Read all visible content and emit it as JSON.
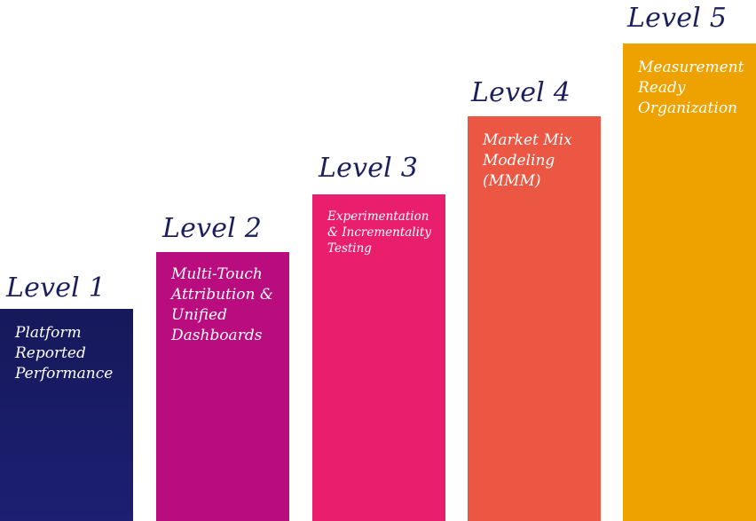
{
  "levels": [
    {
      "title": "Level 1",
      "description_lines": [
        "Platform",
        "Reported",
        "Performance"
      ],
      "color": "#1a1c66"
    },
    {
      "title": "Level 2",
      "description_lines": [
        "Multi-Touch",
        "Attribution &",
        "Unified",
        "Dashboards"
      ],
      "color": "#b80c7f"
    },
    {
      "title": "Level 3",
      "description_lines": [
        "Experimentation",
        "& Incrementality",
        "Testing"
      ],
      "color": "#e91f6e"
    },
    {
      "title": "Level 4",
      "description_lines": [
        "Market Mix",
        "Modeling",
        "(MMM)"
      ],
      "color": "#ec5744"
    },
    {
      "title": "Level 5",
      "description_lines": [
        "Measurement",
        "Ready",
        "Organization"
      ],
      "color": "#eea200"
    }
  ],
  "title_color": "#1b1f5e",
  "text_color": "#ffffff"
}
